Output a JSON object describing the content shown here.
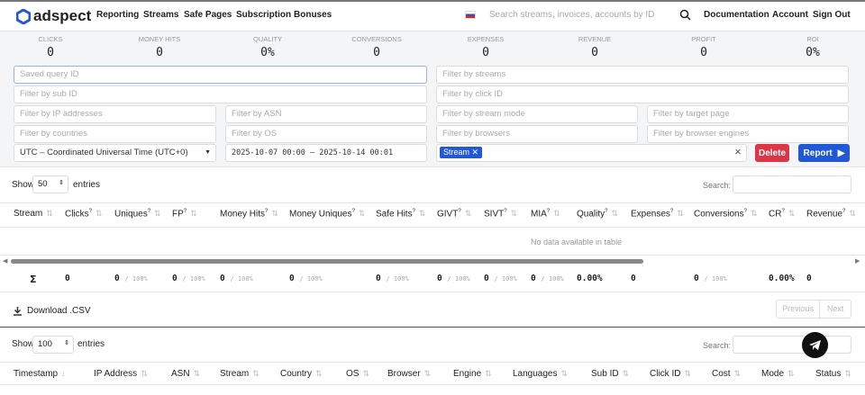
{
  "header": {
    "brand": "adspect",
    "nav": [
      "Reporting",
      "Streams",
      "Safe Pages",
      "Subscription",
      "Bonuses"
    ],
    "search_placeholder": "Search streams, invoices, accounts by ID",
    "links": [
      "Documentation",
      "Account",
      "Sign Out"
    ]
  },
  "stats": [
    {
      "label": "CLICKS",
      "value": "0"
    },
    {
      "label": "MONEY HITS",
      "value": "0"
    },
    {
      "label": "QUALITY",
      "value": "0%"
    },
    {
      "label": "CONVERSIONS",
      "value": "0"
    },
    {
      "label": "EXPENSES",
      "value": "0"
    },
    {
      "label": "REVENUE",
      "value": "0"
    },
    {
      "label": "PROFIT",
      "value": "0"
    },
    {
      "label": "ROI",
      "value": "0%"
    }
  ],
  "filters": {
    "saved_query": "Saved query ID",
    "streams": "Filter by streams",
    "sub_id": "Filter by sub ID",
    "click_id": "Filter by click ID",
    "ip": "Filter by IP addresses",
    "asn": "Filter by ASN",
    "stream_mode": "Filter by stream mode",
    "target_page": "Filter by target page",
    "countries": "Filter by countries",
    "os": "Filter by OS",
    "browsers": "Filter by browsers",
    "browser_engines": "Filter by browser engines",
    "timezone": "UTC – Coordinated Universal Time (UTC+0)",
    "date_range": "2025-10-07 00:00 – 2025-10-14 00:01",
    "group_tag": "Stream",
    "delete": "Delete",
    "report": "Report"
  },
  "table1": {
    "show": "Show",
    "entries_value": "50",
    "entries": "entries",
    "search": "Search:",
    "columns": [
      "Stream",
      "Clicks",
      "Uniques",
      "FP",
      "Money Hits",
      "Money Uniques",
      "Safe Hits",
      "GIVT",
      "SIVT",
      "MIA",
      "Quality",
      "Expenses",
      "Conversions",
      "CR",
      "Revenue"
    ],
    "empty": "No data available in table",
    "sum_symbol": "Σ",
    "sum": [
      "0",
      "0",
      "0",
      "0",
      "0",
      "0",
      "0",
      "0",
      "0",
      "0.00%",
      "0",
      "0",
      "0.00%",
      "0"
    ],
    "pct": "/ 100%",
    "download": "Download .CSV",
    "prev": "Previous",
    "next": "Next"
  },
  "table2": {
    "show": "Show",
    "entries_value": "100",
    "entries": "entries",
    "search": "Search:",
    "columns": [
      "Timestamp",
      "IP Address",
      "ASN",
      "Stream",
      "Country",
      "OS",
      "Browser",
      "Engine",
      "Languages",
      "Sub ID",
      "Click ID",
      "Cost",
      "Mode",
      "Status"
    ]
  },
  "colors": {
    "primary": "#2158d6",
    "danger": "#dc3545"
  }
}
